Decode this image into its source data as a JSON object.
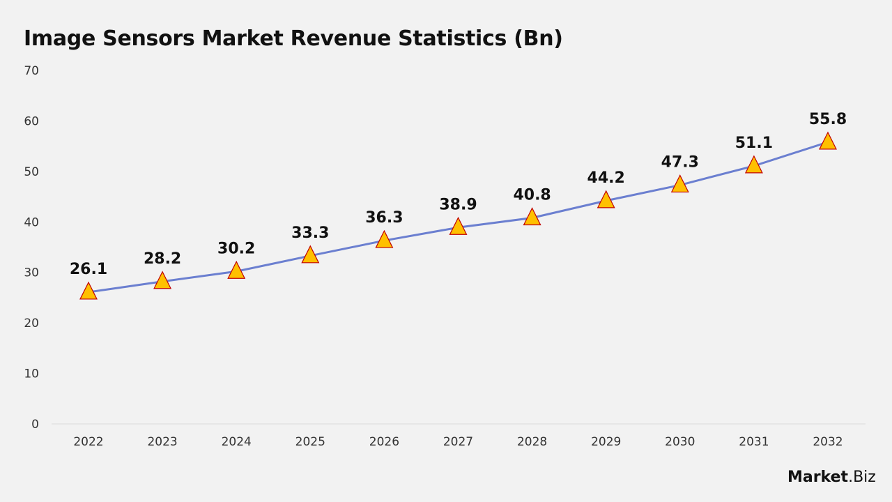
{
  "chart_data": {
    "type": "line",
    "title": "Image Sensors Market Revenue Statistics (Bn)",
    "categories": [
      "2022",
      "2023",
      "2024",
      "2025",
      "2026",
      "2027",
      "2028",
      "2029",
      "2030",
      "2031",
      "2032"
    ],
    "values": [
      26.1,
      28.2,
      30.2,
      33.3,
      36.3,
      38.9,
      40.8,
      44.2,
      47.3,
      51.1,
      55.8
    ],
    "ylim": [
      0,
      70
    ],
    "yticks": [
      0,
      10,
      20,
      30,
      40,
      50,
      60,
      70
    ],
    "xlabel": "",
    "ylabel": "",
    "grid": false,
    "line_color": "#6b7fd0",
    "marker": "triangle",
    "marker_fill": "#ffc000",
    "marker_stroke": "#c00000",
    "data_labels": true
  },
  "brand": {
    "logo_bold": "Market",
    "logo_rest": ".Biz"
  }
}
